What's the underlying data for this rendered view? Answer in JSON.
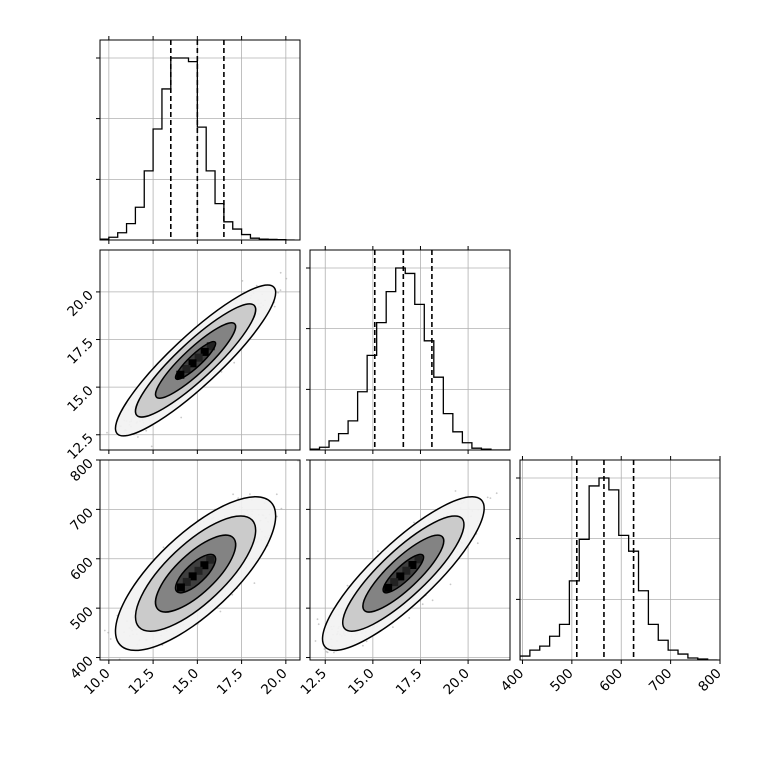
{
  "chart_data": {
    "type": "corner",
    "grid": true,
    "parameters": [
      {
        "range": [
          9.5,
          20.8
        ],
        "quantiles": [
          13.5,
          15.0,
          16.5
        ],
        "ticks": [
          10.0,
          12.5,
          15.0,
          17.5,
          20.0
        ],
        "tick_labels": [
          "10.0",
          "12.5",
          "15.0",
          "17.5",
          "20.0"
        ]
      },
      {
        "range": [
          11.7,
          22.2
        ],
        "quantiles": [
          15.1,
          16.6,
          18.1
        ],
        "ticks": [
          12.5,
          15.0,
          17.5,
          20.0
        ],
        "tick_labels": [
          "12.5",
          "15.0",
          "17.5",
          "20.0"
        ]
      },
      {
        "range": [
          395,
          800
        ],
        "quantiles": [
          510,
          565,
          625
        ],
        "ticks": [
          400,
          500,
          600,
          700,
          800
        ],
        "tick_labels": [
          "400",
          "500",
          "600",
          "700",
          "800"
        ]
      }
    ],
    "marginal_histograms": [
      {
        "bin_edges": [
          9.5,
          10.0,
          10.5,
          11.0,
          11.5,
          12.0,
          12.5,
          13.0,
          13.5,
          14.0,
          14.5,
          15.0,
          15.5,
          16.0,
          16.5,
          17.0,
          17.5,
          18.0,
          18.5,
          19.0,
          19.5,
          20.0,
          20.5
        ],
        "counts": [
          0.5,
          1.5,
          4,
          9,
          18,
          38,
          61,
          83,
          100,
          100,
          98,
          62,
          38,
          20,
          10,
          6,
          3,
          1,
          0.5,
          0.3,
          0.2,
          0
        ]
      },
      {
        "bin_edges": [
          11.7,
          12.2,
          12.7,
          13.2,
          13.7,
          14.2,
          14.7,
          15.2,
          15.7,
          16.2,
          16.7,
          17.2,
          17.7,
          18.2,
          18.7,
          19.2,
          19.7,
          20.2,
          20.7,
          21.2,
          21.7,
          22.2
        ],
        "counts": [
          0.5,
          1.5,
          5,
          9,
          16,
          32,
          52,
          70,
          87,
          100,
          97,
          80,
          60,
          40,
          20,
          10,
          4,
          1,
          0.5,
          0,
          0
        ]
      },
      {
        "bin_edges": [
          395,
          415,
          435,
          455,
          475,
          495,
          515,
          535,
          555,
          575,
          595,
          615,
          635,
          655,
          675,
          695,
          715,
          735,
          755,
          775,
          795
        ],
        "counts": [
          2,
          5,
          7,
          12,
          18,
          40,
          61,
          88,
          92,
          86,
          63,
          55,
          35,
          18,
          10,
          5,
          3,
          1,
          0.5,
          0
        ]
      }
    ],
    "pairs": [
      {
        "row": 1,
        "col": 0,
        "mean": [
          14.9,
          16.4
        ],
        "sd": [
          1.6,
          1.4
        ],
        "correlation": 0.9,
        "n_points": 1400
      },
      {
        "row": 2,
        "col": 0,
        "mean": [
          14.9,
          570
        ],
        "sd": [
          1.6,
          55
        ],
        "correlation": 0.75,
        "n_points": 1400
      },
      {
        "row": 2,
        "col": 1,
        "mean": [
          16.6,
          570
        ],
        "sd": [
          1.5,
          55
        ],
        "correlation": 0.85,
        "n_points": 1400
      }
    ],
    "contour_levels_sigma": [
      0.5,
      1.0,
      1.5,
      2.0
    ]
  }
}
